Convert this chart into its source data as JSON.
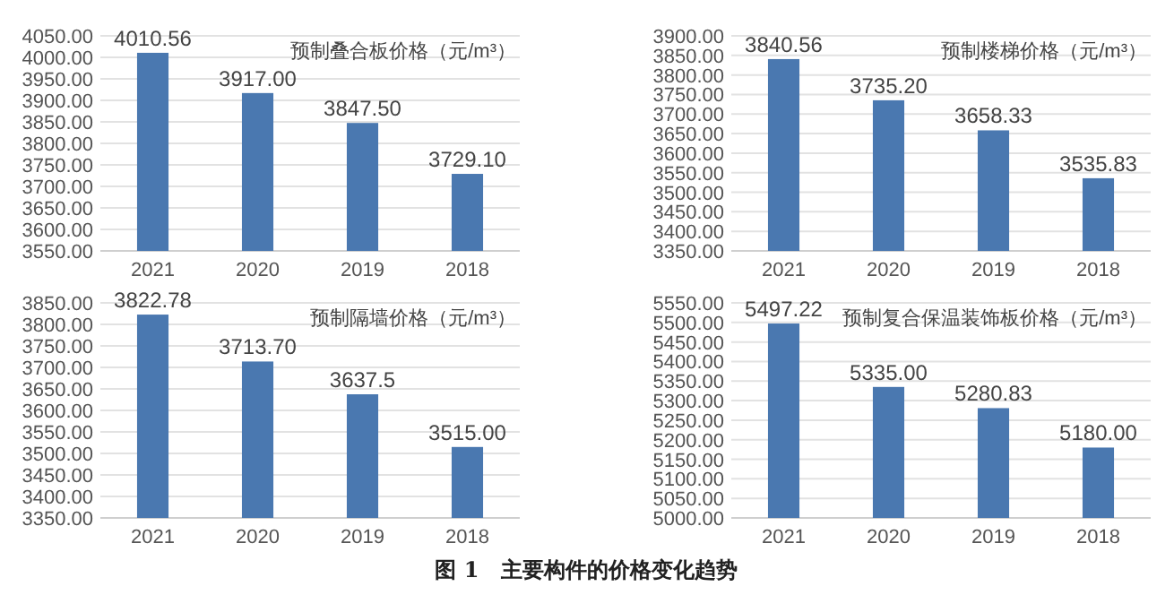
{
  "chart_data": [
    {
      "type": "bar",
      "title": "预制叠合板价格（元/m³）",
      "categories": [
        "2021",
        "2020",
        "2019",
        "2018"
      ],
      "values": [
        4010.56,
        3917.0,
        3847.5,
        3729.1
      ],
      "value_labels": [
        "4010.56",
        "3917.00",
        "3847.50",
        "3729.10"
      ],
      "color": "#4a78b0",
      "ylim": [
        3550,
        4050
      ],
      "yticks": [
        {
          "value": 3550,
          "label": "3550.00"
        },
        {
          "value": 3600,
          "label": "3600.00"
        },
        {
          "value": 3650,
          "label": "3650.00"
        },
        {
          "value": 3700,
          "label": "3700.00"
        },
        {
          "value": 3750,
          "label": "3750.00"
        },
        {
          "value": 3800,
          "label": "3800.00"
        },
        {
          "value": 3850,
          "label": "3850.00"
        },
        {
          "value": 3900,
          "label": "3900.00"
        },
        {
          "value": 3950,
          "label": "3950.00"
        },
        {
          "value": 4000,
          "label": "4000.00"
        },
        {
          "value": 4050,
          "label": "4050.00"
        }
      ],
      "grid": "y"
    },
    {
      "type": "bar",
      "title": "预制楼梯价格（元/m³）",
      "categories": [
        "2021",
        "2020",
        "2019",
        "2018"
      ],
      "values": [
        3840.56,
        3735.2,
        3658.33,
        3535.83
      ],
      "value_labels": [
        "3840.56",
        "3735.20",
        "3658.33",
        "3535.83"
      ],
      "color": "#4a78b0",
      "ylim": [
        3350,
        3900
      ],
      "yticks": [
        {
          "value": 3350,
          "label": "3350.00"
        },
        {
          "value": 3400,
          "label": "3400.00"
        },
        {
          "value": 3450,
          "label": "3450.00"
        },
        {
          "value": 3500,
          "label": "3500.00"
        },
        {
          "value": 3550,
          "label": "3550.00"
        },
        {
          "value": 3600,
          "label": "3600.00"
        },
        {
          "value": 3650,
          "label": "3650.00"
        },
        {
          "value": 3700,
          "label": "3700.00"
        },
        {
          "value": 3750,
          "label": "3750.00"
        },
        {
          "value": 3800,
          "label": "3800.00"
        },
        {
          "value": 3850,
          "label": "3850.00"
        },
        {
          "value": 3900,
          "label": "3900.00"
        }
      ],
      "grid": "y"
    },
    {
      "type": "bar",
      "title": "预制隔墙价格（元/m³）",
      "categories": [
        "2021",
        "2020",
        "2019",
        "2018"
      ],
      "values": [
        3822.78,
        3713.7,
        3637.5,
        3515.0
      ],
      "value_labels": [
        "3822.78",
        "3713.70",
        "3637.5",
        "3515.00"
      ],
      "color": "#4a78b0",
      "ylim": [
        3350,
        3850
      ],
      "yticks": [
        {
          "value": 3350,
          "label": "3350.00"
        },
        {
          "value": 3400,
          "label": "3400.00"
        },
        {
          "value": 3450,
          "label": "3450.00"
        },
        {
          "value": 3500,
          "label": "3500.00"
        },
        {
          "value": 3550,
          "label": "3550.00"
        },
        {
          "value": 3600,
          "label": "3600.00"
        },
        {
          "value": 3650,
          "label": "3650.00"
        },
        {
          "value": 3700,
          "label": "3700.00"
        },
        {
          "value": 3750,
          "label": "3750.00"
        },
        {
          "value": 3800,
          "label": "3800.00"
        },
        {
          "value": 3850,
          "label": "3850.00"
        }
      ],
      "grid": "y"
    },
    {
      "type": "bar",
      "title": "预制复合保温装饰板价格（元/m³）",
      "categories": [
        "2021",
        "2020",
        "2019",
        "2018"
      ],
      "values": [
        5497.22,
        5335.0,
        5280.83,
        5180.0
      ],
      "value_labels": [
        "5497.22",
        "5335.00",
        "5280.83",
        "5180.00"
      ],
      "color": "#4a78b0",
      "ylim": [
        5000,
        5550
      ],
      "yticks": [
        {
          "value": 5000,
          "label": "5000.00"
        },
        {
          "value": 5050,
          "label": "5050.00"
        },
        {
          "value": 5100,
          "label": "5100.00"
        },
        {
          "value": 5150,
          "label": "5150.00"
        },
        {
          "value": 5200,
          "label": "5200.00"
        },
        {
          "value": 5250,
          "label": "5250.00"
        },
        {
          "value": 5300,
          "label": "5300.00"
        },
        {
          "value": 5350,
          "label": "5350.00"
        },
        {
          "value": 5400,
          "label": "5400.00"
        },
        {
          "value": 5450,
          "label": "5450.00"
        },
        {
          "value": 5500,
          "label": "5500.00"
        },
        {
          "value": 5550,
          "label": "5550.00"
        }
      ],
      "grid": "y",
      "annotations": [
        "图 1　主要构件的价格变化趋势"
      ]
    }
  ]
}
